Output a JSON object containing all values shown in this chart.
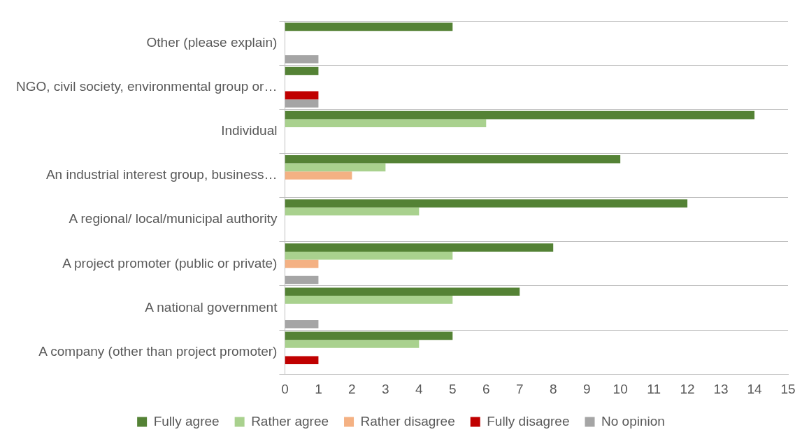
{
  "chart_data": {
    "type": "bar",
    "orientation": "horizontal",
    "categories": [
      "Other (please explain)",
      "NGO, civil society, environmental group or…",
      "Individual",
      "An industrial interest group, business…",
      "A regional/ local/municipal authority",
      "A project promoter (public or private)",
      "A national government",
      "A company (other than project promoter)"
    ],
    "series": [
      {
        "name": "Fully agree",
        "color": "#548235",
        "values": [
          5,
          1,
          14,
          10,
          12,
          8,
          7,
          5
        ]
      },
      {
        "name": "Rather agree",
        "color": "#a9d18e",
        "values": [
          null,
          null,
          6,
          3,
          4,
          5,
          5,
          4
        ]
      },
      {
        "name": "Rather disagree",
        "color": "#f4b183",
        "values": [
          null,
          null,
          null,
          2,
          null,
          1,
          null,
          null
        ]
      },
      {
        "name": "Fully disagree",
        "color": "#c00000",
        "values": [
          null,
          1,
          null,
          null,
          null,
          null,
          null,
          1
        ]
      },
      {
        "name": "No opinion",
        "color": "#a5a5a5",
        "values": [
          1,
          1,
          null,
          null,
          null,
          1,
          1,
          null
        ]
      }
    ],
    "xlim": [
      0,
      15
    ],
    "xticks": [
      0,
      1,
      2,
      3,
      4,
      5,
      6,
      7,
      8,
      9,
      10,
      11,
      12,
      13,
      14,
      15
    ],
    "grid": "y",
    "legend": "bottom"
  }
}
